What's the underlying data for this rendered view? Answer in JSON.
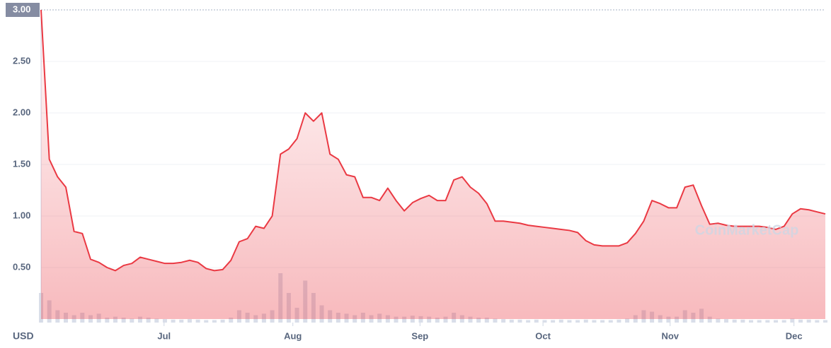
{
  "chart_data": {
    "type": "line",
    "y_unit": "USD",
    "watermark": "CoinMarketCap",
    "color": "#ea3943",
    "values": [
      3.0,
      1.55,
      1.38,
      1.28,
      0.85,
      0.83,
      0.58,
      0.55,
      0.5,
      0.47,
      0.52,
      0.54,
      0.6,
      0.58,
      0.56,
      0.54,
      0.54,
      0.55,
      0.57,
      0.55,
      0.49,
      0.47,
      0.48,
      0.57,
      0.75,
      0.78,
      0.9,
      0.88,
      1.0,
      1.6,
      1.65,
      1.75,
      2.0,
      1.92,
      2.0,
      1.6,
      1.55,
      1.4,
      1.38,
      1.18,
      1.18,
      1.15,
      1.27,
      1.15,
      1.05,
      1.13,
      1.17,
      1.2,
      1.15,
      1.15,
      1.35,
      1.38,
      1.28,
      1.22,
      1.12,
      0.95,
      0.95,
      0.94,
      0.93,
      0.91,
      0.9,
      0.89,
      0.88,
      0.87,
      0.86,
      0.84,
      0.76,
      0.72,
      0.71,
      0.71,
      0.71,
      0.74,
      0.83,
      0.95,
      1.15,
      1.12,
      1.08,
      1.08,
      1.28,
      1.3,
      1.1,
      0.92,
      0.93,
      0.91,
      0.9,
      0.9,
      0.9,
      0.9,
      0.89,
      0.87,
      0.9,
      1.02,
      1.07,
      1.06,
      1.04,
      1.02
    ],
    "volume": [
      60,
      45,
      25,
      20,
      15,
      20,
      15,
      18,
      10,
      12,
      10,
      8,
      12,
      10,
      8,
      7,
      6,
      6,
      7,
      6,
      5,
      5,
      6,
      10,
      25,
      20,
      15,
      18,
      25,
      100,
      60,
      30,
      85,
      60,
      35,
      25,
      20,
      18,
      15,
      20,
      15,
      18,
      15,
      12,
      12,
      14,
      13,
      12,
      10,
      12,
      20,
      15,
      12,
      10,
      10,
      8,
      7,
      6,
      6,
      5,
      6,
      5,
      5,
      6,
      5,
      5,
      6,
      5,
      5,
      5,
      6,
      8,
      15,
      25,
      22,
      15,
      12,
      12,
      25,
      20,
      28,
      12,
      8,
      7,
      6,
      6,
      5,
      5,
      5,
      5,
      5,
      8,
      6,
      6,
      5,
      5
    ],
    "xlim": [
      0,
      95
    ],
    "xticks": [
      {
        "value": 14.9,
        "label": "Jul"
      },
      {
        "value": 30.5,
        "label": "Aug"
      },
      {
        "value": 45.9,
        "label": "Sep"
      },
      {
        "value": 60.8,
        "label": "Oct"
      },
      {
        "value": 76.2,
        "label": "Nov"
      },
      {
        "value": 91.2,
        "label": "Dec"
      }
    ],
    "ylim": [
      0,
      3
    ],
    "yticks": [
      {
        "value": 0.5,
        "label": "0.50"
      },
      {
        "value": 1,
        "label": "1.00"
      },
      {
        "value": 1.5,
        "label": "1.50"
      },
      {
        "value": 2,
        "label": "2.00"
      },
      {
        "value": 2.5,
        "label": "2.50"
      },
      {
        "value": 3,
        "label": "3.00"
      }
    ],
    "grid": true
  }
}
